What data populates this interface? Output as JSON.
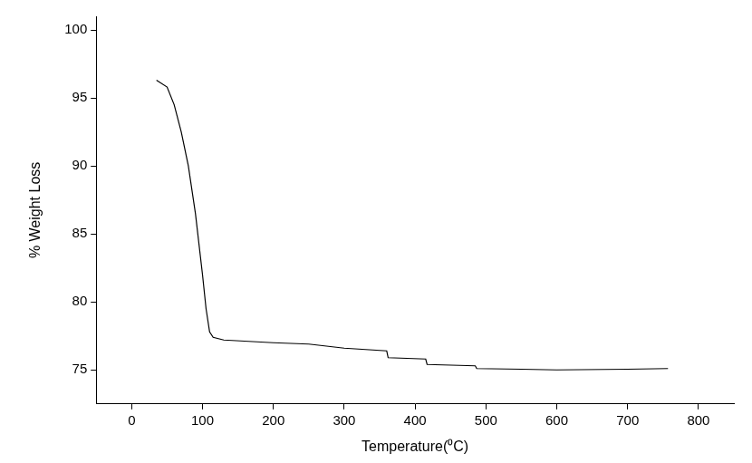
{
  "chart_data": {
    "type": "line",
    "x_label": "Temperature(⁰C)",
    "y_label": "% Weight Loss",
    "x": [
      35,
      50,
      60,
      70,
      80,
      90,
      100,
      105,
      110,
      115,
      130,
      200,
      250,
      300,
      360,
      362,
      415,
      417,
      485,
      487,
      550,
      600,
      700,
      757
    ],
    "values": [
      96.3,
      95.8,
      94.5,
      92.5,
      90,
      86.5,
      82,
      79.5,
      77.8,
      77.4,
      77.2,
      77.0,
      76.9,
      76.6,
      76.4,
      75.9,
      75.8,
      75.4,
      75.3,
      75.1,
      75.05,
      75.0,
      75.05,
      75.1
    ],
    "color": "#000000",
    "xlim": [
      -50,
      850
    ],
    "xticks": [
      0,
      100,
      200,
      300,
      400,
      500,
      600,
      700,
      800
    ],
    "ylim": [
      72.5,
      101
    ],
    "yticks": [
      75,
      80,
      85,
      90,
      95,
      100
    ],
    "grid": false
  }
}
